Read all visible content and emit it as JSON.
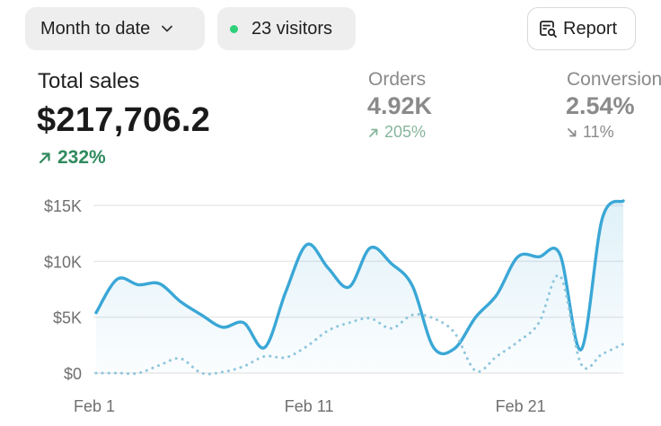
{
  "filters": {
    "date_range": "Month to date",
    "visitors": "23 visitors",
    "report_label": "Report"
  },
  "metrics": {
    "total_sales": {
      "label": "Total sales",
      "value": "$217,706.2",
      "change": "232%",
      "direction": "up"
    },
    "orders": {
      "label": "Orders",
      "value": "4.92K",
      "change": "205%",
      "direction": "up"
    },
    "conversion": {
      "label": "Conversion",
      "value": "2.54%",
      "change": "11%",
      "direction": "down"
    }
  },
  "colors": {
    "primary_line": "#3aa7d6",
    "comparison_line": "#8fc6dc",
    "positive": "#2f8a5e",
    "live_dot": "#2fd07a"
  },
  "icons": {
    "date_picker": "chevron-down-icon",
    "live": "live-dot-icon",
    "report": "report-search-icon",
    "trend_up": "arrow-up-right-icon",
    "trend_down": "arrow-down-right-icon"
  },
  "chart_data": {
    "type": "line",
    "x": [
      1,
      2,
      3,
      4,
      5,
      6,
      7,
      8,
      9,
      10,
      11,
      12,
      13,
      14,
      15,
      16,
      17,
      18,
      19,
      20,
      21,
      22,
      23,
      24,
      25,
      26
    ],
    "x_ticks": [
      {
        "x": 1,
        "label": "Feb 1"
      },
      {
        "x": 11,
        "label": "Feb 11"
      },
      {
        "x": 21,
        "label": "Feb 21"
      }
    ],
    "y_ticks": [
      {
        "value": 0,
        "label": "$0"
      },
      {
        "value": 5000,
        "label": "$5K"
      },
      {
        "value": 10000,
        "label": "$10K"
      },
      {
        "value": 15000,
        "label": "$15K"
      }
    ],
    "ylim": [
      0,
      15000
    ],
    "grid": true,
    "legend": "none",
    "series": [
      {
        "style": "solid",
        "values": [
          5400,
          8400,
          7900,
          8000,
          6400,
          5200,
          4100,
          4500,
          2300,
          7300,
          11500,
          9400,
          7700,
          11200,
          9800,
          7800,
          2300,
          2200,
          5000,
          7000,
          10400,
          10400,
          10600,
          2100,
          13800,
          15400
        ]
      },
      {
        "style": "dotted",
        "values": [
          0,
          0,
          0,
          700,
          1300,
          0,
          100,
          600,
          1500,
          1400,
          2400,
          3800,
          4500,
          4900,
          4000,
          5200,
          4900,
          3600,
          200,
          1500,
          2800,
          4500,
          8700,
          800,
          1700,
          2600
        ]
      }
    ]
  }
}
